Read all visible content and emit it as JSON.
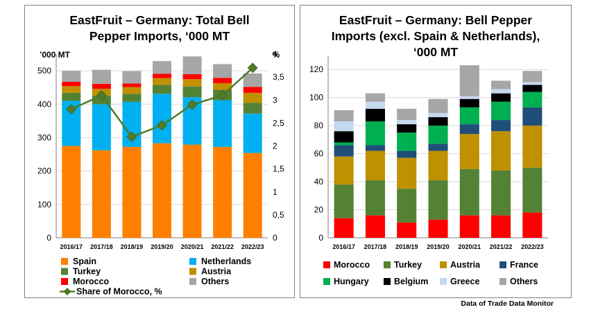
{
  "footer": "Data of Trade Data Monitor",
  "chart_data": [
    {
      "type": "bar",
      "stacked": true,
      "title_lines": [
        "EastFruit – Germany: Total Bell",
        "Pepper Imports, ‘000 MT"
      ],
      "ylabel": "’000 MT",
      "y2label": "%",
      "categories": [
        "2016/17",
        "2017/18",
        "2018/19",
        "2019/20",
        "2020/21",
        "2021/22",
        "2022/23"
      ],
      "ylim": [
        0,
        550
      ],
      "yticks": [
        0,
        100,
        200,
        300,
        400,
        500
      ],
      "y2lim": [
        0,
        4
      ],
      "y2ticks": [
        "0",
        "0,5",
        "1",
        "1,5",
        "2",
        "2,5",
        "3",
        "3,5",
        "4"
      ],
      "grid": true,
      "series": [
        {
          "name": "Spain",
          "color": "#ff8000",
          "values": [
            275,
            262,
            272,
            283,
            279,
            272,
            254
          ]
        },
        {
          "name": "Netherlands",
          "color": "#00b0f0",
          "values": [
            135,
            138,
            135,
            148,
            142,
            140,
            118
          ]
        },
        {
          "name": "Turkey",
          "color": "#548235",
          "values": [
            24,
            26,
            24,
            27,
            32,
            31,
            32
          ]
        },
        {
          "name": "Austria",
          "color": "#bf9000",
          "values": [
            20,
            20,
            20,
            20,
            22,
            20,
            30
          ]
        },
        {
          "name": "Morocco",
          "color": "#ff0000",
          "values": [
            13,
            15,
            11,
            13,
            15,
            16,
            18
          ]
        },
        {
          "name": "Others",
          "color": "#a6a6a6",
          "values": [
            33,
            42,
            37,
            38,
            53,
            41,
            40
          ]
        }
      ],
      "line_series": {
        "name": "Share of Morocco, %",
        "color": "#4f7a28",
        "values": [
          2.8,
          3.1,
          2.2,
          2.45,
          2.9,
          3.1,
          3.7
        ]
      },
      "legend": [
        {
          "name": "Spain",
          "color": "#ff8000",
          "kind": "box"
        },
        {
          "name": "Netherlands",
          "color": "#00b0f0",
          "kind": "box"
        },
        {
          "name": "Turkey",
          "color": "#548235",
          "kind": "box"
        },
        {
          "name": "Austria",
          "color": "#bf9000",
          "kind": "box"
        },
        {
          "name": "Morocco",
          "color": "#ff0000",
          "kind": "box"
        },
        {
          "name": "Others",
          "color": "#a6a6a6",
          "kind": "box"
        },
        {
          "name": "Share of Morocco, %",
          "color": "#4f7a28",
          "kind": "line"
        }
      ]
    },
    {
      "type": "bar",
      "stacked": true,
      "title_lines": [
        "EastFruit – Germany: Bell Pepper",
        "Imports (excl. Spain & Netherlands),",
        "‘000 MT"
      ],
      "categories": [
        "2016/17",
        "2017/18",
        "2018/19",
        "2019/20",
        "2020/21",
        "2021/22",
        "2022/23"
      ],
      "ylim": [
        0,
        130
      ],
      "yticks": [
        0,
        20,
        40,
        60,
        80,
        100,
        120
      ],
      "grid": true,
      "series": [
        {
          "name": "Morocco",
          "color": "#ff0000",
          "values": [
            14,
            16,
            11,
            13,
            16,
            16,
            18
          ]
        },
        {
          "name": "Turkey",
          "color": "#548235",
          "values": [
            24,
            25,
            24,
            28,
            33,
            32,
            32
          ]
        },
        {
          "name": "Austria",
          "color": "#bf9000",
          "values": [
            20,
            21,
            22,
            21,
            25,
            28,
            30
          ]
        },
        {
          "name": "France",
          "color": "#1f4e79",
          "values": [
            8,
            4,
            5,
            5,
            7,
            8,
            13
          ]
        },
        {
          "name": "Hungary",
          "color": "#00b050",
          "values": [
            2,
            17,
            13,
            13,
            12,
            13,
            11
          ]
        },
        {
          "name": "Belgium",
          "color": "#000000",
          "values": [
            8,
            9,
            6,
            6,
            6,
            6,
            5
          ]
        },
        {
          "name": "Greece",
          "color": "#c5d9f1",
          "values": [
            7,
            5,
            3,
            3,
            2,
            3,
            2
          ]
        },
        {
          "name": "Others",
          "color": "#a6a6a6",
          "values": [
            8,
            6,
            8,
            10,
            22,
            6,
            8
          ]
        }
      ],
      "legend": [
        {
          "name": "Morocco",
          "color": "#ff0000",
          "kind": "box"
        },
        {
          "name": "Turkey",
          "color": "#548235",
          "kind": "box"
        },
        {
          "name": "Austria",
          "color": "#bf9000",
          "kind": "box"
        },
        {
          "name": "France",
          "color": "#1f4e79",
          "kind": "box"
        },
        {
          "name": "Hungary",
          "color": "#00b050",
          "kind": "box"
        },
        {
          "name": "Belgium",
          "color": "#000000",
          "kind": "box"
        },
        {
          "name": "Greece",
          "color": "#c5d9f1",
          "kind": "box"
        },
        {
          "name": "Others",
          "color": "#a6a6a6",
          "kind": "box"
        }
      ]
    }
  ]
}
